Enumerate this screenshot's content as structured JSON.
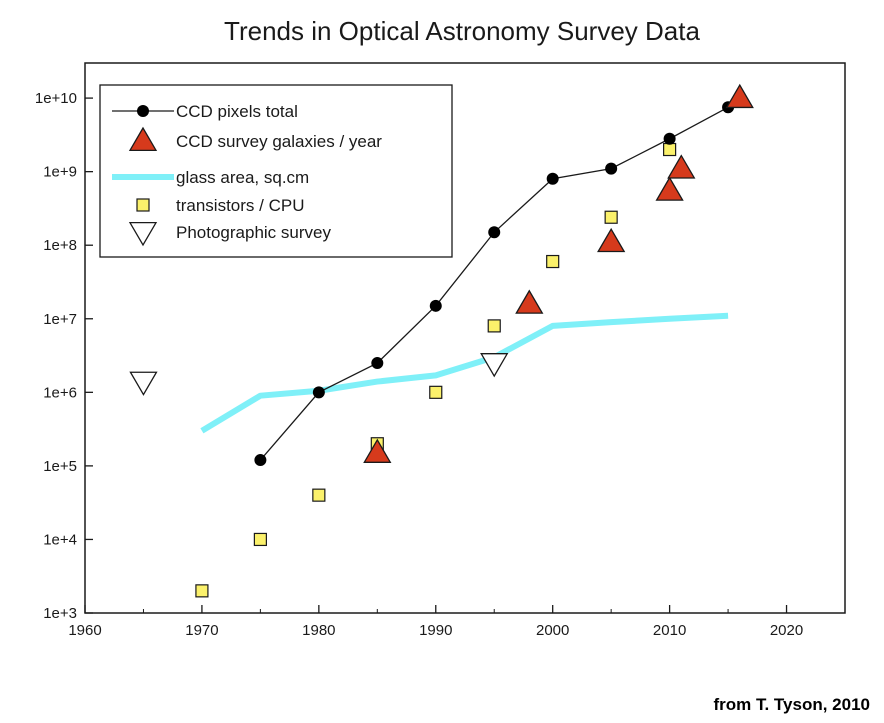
{
  "chart_data": {
    "type": "scatter",
    "title": "Trends in Optical Astronomy Survey Data",
    "xlabel": "",
    "ylabel": "",
    "xlim": [
      1960,
      2025
    ],
    "ylim": [
      1000,
      30000000000
    ],
    "yscale": "log",
    "x_ticks": [
      1960,
      1970,
      1980,
      1990,
      2000,
      2010,
      2020
    ],
    "y_ticks": [
      {
        "value": 1000,
        "label": "1e+3"
      },
      {
        "value": 10000,
        "label": "1e+4"
      },
      {
        "value": 100000,
        "label": "1e+5"
      },
      {
        "value": 1000000,
        "label": "1e+6"
      },
      {
        "value": 10000000,
        "label": "1e+7"
      },
      {
        "value": 100000000,
        "label": "1e+8"
      },
      {
        "value": 1000000000,
        "label": "1e+9"
      },
      {
        "value": 10000000000,
        "label": "1e+10"
      }
    ],
    "grid": false,
    "legend_position": "top-left",
    "series": [
      {
        "name": "CCD pixels total",
        "marker": "circle-line",
        "color": "#000000",
        "points": [
          [
            1975,
            120000
          ],
          [
            1980,
            1000000
          ],
          [
            1985,
            2500000
          ],
          [
            1990,
            15000000
          ],
          [
            1995,
            150000000
          ],
          [
            2000,
            800000000
          ],
          [
            2005,
            1100000000
          ],
          [
            2010,
            2800000000
          ],
          [
            2015,
            7500000000
          ]
        ]
      },
      {
        "name": "CCD survey galaxies / year",
        "marker": "triangle",
        "color": "#d63a1c",
        "points": [
          [
            1985,
            150000
          ],
          [
            1998,
            16000000
          ],
          [
            2005,
            110000000
          ],
          [
            2010,
            550000000
          ],
          [
            2011,
            1100000000
          ],
          [
            2016,
            10000000000
          ]
        ]
      },
      {
        "name": "glass area, sq.cm",
        "marker": "line",
        "color": "#7ff0f8",
        "points": [
          [
            1970,
            300000
          ],
          [
            1975,
            900000
          ],
          [
            1980,
            1050000
          ],
          [
            1985,
            1400000
          ],
          [
            1990,
            1700000
          ],
          [
            1995,
            3000000
          ],
          [
            2000,
            8000000
          ],
          [
            2005,
            9000000
          ],
          [
            2010,
            10000000
          ],
          [
            2015,
            11000000
          ]
        ]
      },
      {
        "name": "transistors / CPU",
        "marker": "square",
        "color": "#fbf16b",
        "points": [
          [
            1970,
            2000
          ],
          [
            1975,
            10000
          ],
          [
            1980,
            40000
          ],
          [
            1985,
            200000
          ],
          [
            1990,
            1000000
          ],
          [
            1995,
            8000000
          ],
          [
            2000,
            60000000
          ],
          [
            2005,
            240000000
          ],
          [
            2010,
            2000000000
          ]
        ]
      },
      {
        "name": "Photographic survey",
        "marker": "triangle-down",
        "color": "#ffffff",
        "points": [
          [
            1965,
            1400000
          ],
          [
            1995,
            2500000
          ]
        ]
      }
    ]
  },
  "credit": "from T.  Tyson, 2010"
}
